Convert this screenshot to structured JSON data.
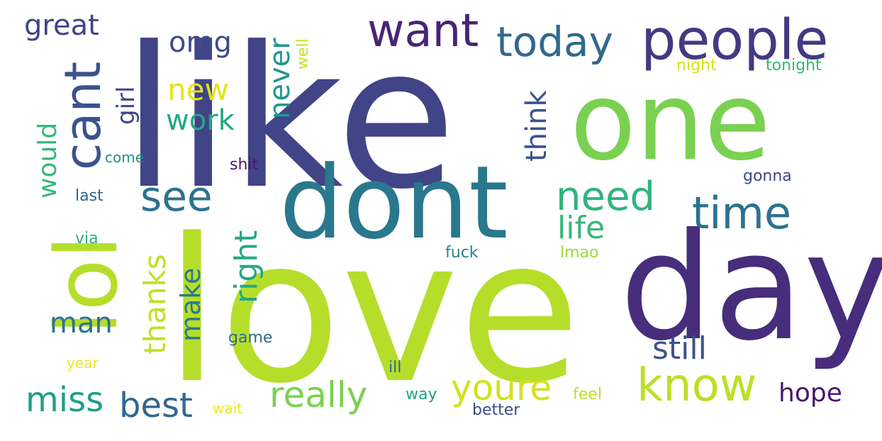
{
  "words": [
    {
      "id": "like",
      "text": "like",
      "color": "#414487",
      "vertical": false
    },
    {
      "id": "one",
      "text": "one",
      "color": "#7ad151",
      "vertical": false
    },
    {
      "id": "love",
      "text": "love",
      "color": "#b5de2b",
      "vertical": false
    },
    {
      "id": "dont",
      "text": "dont",
      "color": "#2a788e",
      "vertical": false
    },
    {
      "id": "day",
      "text": "day",
      "color": "#472d7b",
      "vertical": false
    },
    {
      "id": "people",
      "text": "people",
      "color": "#443983",
      "vertical": false
    },
    {
      "id": "lol",
      "text": "lol",
      "color": "#b5de2b",
      "vertical": true
    },
    {
      "id": "cant",
      "text": "cant",
      "color": "#3b528b",
      "vertical": true
    },
    {
      "id": "want",
      "text": "want",
      "color": "#482475",
      "vertical": false
    },
    {
      "id": "today",
      "text": "today",
      "color": "#31688e",
      "vertical": false
    },
    {
      "id": "time",
      "text": "time",
      "color": "#2c728e",
      "vertical": false
    },
    {
      "id": "know",
      "text": "know",
      "color": "#bddf26",
      "vertical": false
    },
    {
      "id": "see",
      "text": "see",
      "color": "#2c728e",
      "vertical": false
    },
    {
      "id": "need",
      "text": "need",
      "color": "#2fb47c",
      "vertical": false
    },
    {
      "id": "really",
      "text": "really",
      "color": "#7ad151",
      "vertical": false
    },
    {
      "id": "youre",
      "text": "youre",
      "color": "#d2e21b",
      "vertical": false
    },
    {
      "id": "still",
      "text": "still",
      "color": "#3b528b",
      "vertical": false
    },
    {
      "id": "miss",
      "text": "miss",
      "color": "#1f9e89",
      "vertical": false
    },
    {
      "id": "best",
      "text": "best",
      "color": "#31688e",
      "vertical": false
    },
    {
      "id": "life",
      "text": "life",
      "color": "#35b779",
      "vertical": false
    },
    {
      "id": "great",
      "text": "great",
      "color": "#414487",
      "vertical": false
    },
    {
      "id": "omg",
      "text": "omg",
      "color": "#3e4a89",
      "vertical": false
    },
    {
      "id": "new",
      "text": "new",
      "color": "#e5e419",
      "vertical": false
    },
    {
      "id": "work",
      "text": "work",
      "color": "#22a884",
      "vertical": false
    },
    {
      "id": "never",
      "text": "never",
      "color": "#1f988b",
      "vertical": true
    },
    {
      "id": "girl",
      "text": "girl",
      "color": "#414487",
      "vertical": true
    },
    {
      "id": "think",
      "text": "think",
      "color": "#3b528b",
      "vertical": true
    },
    {
      "id": "would",
      "text": "would",
      "color": "#35b779",
      "vertical": true
    },
    {
      "id": "thanks",
      "text": "thanks",
      "color": "#c2df23",
      "vertical": true
    },
    {
      "id": "right",
      "text": "right",
      "color": "#22a884",
      "vertical": true
    },
    {
      "id": "make",
      "text": "make",
      "color": "#2a788e",
      "vertical": true
    },
    {
      "id": "man",
      "text": "man",
      "color": "#2c728e",
      "vertical": false
    },
    {
      "id": "hope",
      "text": "hope",
      "color": "#48186a",
      "vertical": false
    },
    {
      "id": "well",
      "text": "well",
      "color": "#c8e020",
      "vertical": true
    },
    {
      "id": "night",
      "text": "night",
      "color": "#d8e219",
      "vertical": false
    },
    {
      "id": "tonight",
      "text": "tonight",
      "color": "#35b779",
      "vertical": false
    },
    {
      "id": "come",
      "text": "come",
      "color": "#21918c",
      "vertical": false
    },
    {
      "id": "shit",
      "text": "shit",
      "color": "#481a6c",
      "vertical": false
    },
    {
      "id": "gonna",
      "text": "gonna",
      "color": "#404688",
      "vertical": false
    },
    {
      "id": "last",
      "text": "last",
      "color": "#33638d",
      "vertical": false
    },
    {
      "id": "via",
      "text": "via",
      "color": "#29af7f",
      "vertical": false
    },
    {
      "id": "fuck",
      "text": "fuck",
      "color": "#26828e",
      "vertical": false
    },
    {
      "id": "lmao",
      "text": "lmao",
      "color": "#9bd93c",
      "vertical": false
    },
    {
      "id": "game",
      "text": "game",
      "color": "#31688e",
      "vertical": false
    },
    {
      "id": "year",
      "text": "year",
      "color": "#f1e51d",
      "vertical": false
    },
    {
      "id": "wait",
      "text": "wait",
      "color": "#f1e51d",
      "vertical": false
    },
    {
      "id": "ill",
      "text": "ill",
      "color": "#31688e",
      "vertical": false
    },
    {
      "id": "way",
      "text": "way",
      "color": "#20a386",
      "vertical": false
    },
    {
      "id": "feel",
      "text": "feel",
      "color": "#b8de29",
      "vertical": false
    },
    {
      "id": "better",
      "text": "better",
      "color": "#3e4a89",
      "vertical": false
    }
  ]
}
